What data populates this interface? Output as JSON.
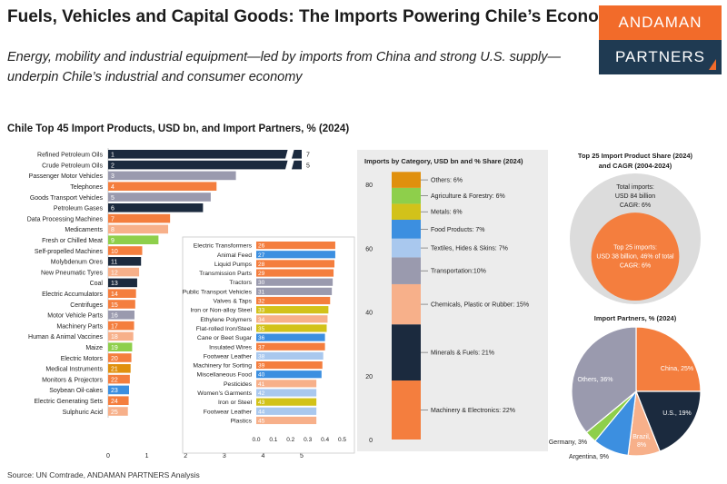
{
  "header": {
    "title": "Fuels, Vehicles and Capital Goods: The Imports Powering Chile’s Economy",
    "subtitle": "Energy, mobility and industrial equipment—led by imports from China and strong U.S. supply—underpin Chile’s industrial and consumer economy",
    "logo_top": "ANDAMAN",
    "logo_bottom": "PARTNERS"
  },
  "footer": {
    "source": "Source: UN Comtrade, ANDAMAN PARTNERS Analysis"
  },
  "colors": {
    "navy": "#1B2A3E",
    "gray": "#9A9AAE",
    "orange": "#F47E3E",
    "peach": "#F7B08A",
    "green": "#8ECF4B",
    "yellow": "#D2C21A",
    "blue": "#3C8FE0",
    "lightblue": "#A9C8EE",
    "amber": "#E0900D",
    "lightgray": "#DCDCDC"
  },
  "chart_data": [
    {
      "type": "bar",
      "title": "Chile Top 45 Import Products, USD bn, and Import Partners, % (2024)",
      "orientation": "horizontal",
      "axis_break": true,
      "xlim": [
        0,
        5
      ],
      "ticks": [
        0,
        1,
        2,
        3,
        4,
        5
      ],
      "items": [
        {
          "rank": "1",
          "label": "Refined Petroleum Oils",
          "value": 7,
          "value_label": "7",
          "color": "navy"
        },
        {
          "rank": "2",
          "label": "Crude Petroleum Oils",
          "value": 5,
          "value_label": "5",
          "color": "navy"
        },
        {
          "rank": "3",
          "label": "Passenger Motor Vehicles",
          "value": 3.3,
          "color": "gray"
        },
        {
          "rank": "4",
          "label": "Telephones",
          "value": 2.8,
          "color": "orange"
        },
        {
          "rank": "5",
          "label": "Goods Transport Vehicles",
          "value": 2.65,
          "color": "gray"
        },
        {
          "rank": "6",
          "label": "Petroleum Gases",
          "value": 2.45,
          "color": "navy"
        },
        {
          "rank": "7",
          "label": "Data Processing Machines",
          "value": 1.6,
          "color": "orange"
        },
        {
          "rank": "8",
          "label": "Medicaments",
          "value": 1.55,
          "color": "peach"
        },
        {
          "rank": "9",
          "label": "Fresh or Chilled Meat",
          "value": 1.3,
          "color": "green"
        },
        {
          "rank": "10",
          "label": "Self-propelled Machines",
          "value": 0.88,
          "color": "orange"
        },
        {
          "rank": "11",
          "label": "Molybdenum Ores",
          "value": 0.85,
          "color": "navy"
        },
        {
          "rank": "12",
          "label": "New Pneumatic Tyres",
          "value": 0.8,
          "color": "peach"
        },
        {
          "rank": "13",
          "label": "Coal",
          "value": 0.75,
          "color": "navy"
        },
        {
          "rank": "14",
          "label": "Electric Accumulators",
          "value": 0.72,
          "color": "orange"
        },
        {
          "rank": "15",
          "label": "Centrifuges",
          "value": 0.7,
          "color": "orange"
        },
        {
          "rank": "16",
          "label": "Motor Vehicle Parts",
          "value": 0.68,
          "color": "gray"
        },
        {
          "rank": "17",
          "label": "Machinery Parts",
          "value": 0.67,
          "color": "orange"
        },
        {
          "rank": "18",
          "label": "Human & Animal Vaccines",
          "value": 0.65,
          "color": "peach"
        },
        {
          "rank": "19",
          "label": "Maize",
          "value": 0.62,
          "color": "green"
        },
        {
          "rank": "20",
          "label": "Electric Motors",
          "value": 0.6,
          "color": "orange"
        },
        {
          "rank": "21",
          "label": "Medical Instruments",
          "value": 0.58,
          "color": "amber"
        },
        {
          "rank": "22",
          "label": "Monitors & Projectors",
          "value": 0.56,
          "color": "orange"
        },
        {
          "rank": "23",
          "label": "Soybean Oil-cakes",
          "value": 0.54,
          "color": "blue"
        },
        {
          "rank": "24",
          "label": "Electric Generating Sets",
          "value": 0.53,
          "color": "orange"
        },
        {
          "rank": "25",
          "label": "Sulphuric Acid",
          "value": 0.51,
          "color": "peach"
        }
      ]
    },
    {
      "type": "bar",
      "orientation": "horizontal",
      "xlim": [
        0,
        0.5
      ],
      "ticks": [
        0,
        0.1,
        0.2,
        0.3,
        0.4,
        0.5
      ],
      "tick_labels": [
        "0.0",
        "0.1",
        "0.2",
        "0.3",
        "0.4",
        "0.5"
      ],
      "items": [
        {
          "rank": "26",
          "label": "Electric Transformers",
          "value": 0.46,
          "color": "orange"
        },
        {
          "rank": "27",
          "label": "Animal Feed",
          "value": 0.46,
          "color": "blue"
        },
        {
          "rank": "28",
          "label": "Liquid Pumps",
          "value": 0.455,
          "color": "orange"
        },
        {
          "rank": "29",
          "label": "Transmission Parts",
          "value": 0.45,
          "color": "orange"
        },
        {
          "rank": "30",
          "label": "Tractors",
          "value": 0.445,
          "color": "gray"
        },
        {
          "rank": "31",
          "label": "Public Transport Vehicles",
          "value": 0.44,
          "color": "gray"
        },
        {
          "rank": "32",
          "label": "Valves & Taps",
          "value": 0.43,
          "color": "orange"
        },
        {
          "rank": "33",
          "label": "Iron or Non-alloy Steel",
          "value": 0.42,
          "color": "yellow"
        },
        {
          "rank": "34",
          "label": "Ethylene Polymers",
          "value": 0.415,
          "color": "peach"
        },
        {
          "rank": "35",
          "label": "Flat-rolled Iron/Steel",
          "value": 0.41,
          "color": "yellow"
        },
        {
          "rank": "36",
          "label": "Cane or Beet Sugar",
          "value": 0.4,
          "color": "blue"
        },
        {
          "rank": "37",
          "label": "Insulated Wires",
          "value": 0.4,
          "color": "orange"
        },
        {
          "rank": "38",
          "label": "Footwear Leather",
          "value": 0.39,
          "color": "lightblue"
        },
        {
          "rank": "39",
          "label": "Machinery for Sorting",
          "value": 0.385,
          "color": "orange"
        },
        {
          "rank": "40",
          "label": "Miscellaneous Food",
          "value": 0.38,
          "color": "blue"
        },
        {
          "rank": "41",
          "label": "Pesticides",
          "value": 0.35,
          "color": "peach"
        },
        {
          "rank": "42",
          "label": "Women's Garments",
          "value": 0.35,
          "color": "lightblue"
        },
        {
          "rank": "43",
          "label": "Iron or Steel",
          "value": 0.35,
          "color": "yellow"
        },
        {
          "rank": "44",
          "label": "Footwear Leather",
          "value": 0.35,
          "color": "lightblue"
        },
        {
          "rank": "45",
          "label": "Plastics",
          "value": 0.35,
          "color": "peach"
        }
      ]
    },
    {
      "type": "bar",
      "stacked": true,
      "title": "Imports by Category, USD bn and % Share (2024)",
      "ylim": [
        0,
        80
      ],
      "yticks": [
        0,
        20,
        40,
        60,
        80
      ],
      "segments": [
        {
          "label": "Machinery & Electronics: 22%",
          "value": 18.5,
          "color": "orange"
        },
        {
          "label": "Minerals & Fuels: 21%",
          "value": 17.6,
          "color": "navy"
        },
        {
          "label": "Chemicals, Plastic or Rubber: 15%",
          "value": 12.6,
          "color": "peach"
        },
        {
          "label": "Transportation:10%",
          "value": 8.4,
          "color": "gray"
        },
        {
          "label": "Textiles, Hides & Skins: 7%",
          "value": 5.9,
          "color": "lightblue"
        },
        {
          "label": "Food Products: 7%",
          "value": 5.9,
          "color": "blue"
        },
        {
          "label": "Metals: 6%",
          "value": 5.0,
          "color": "yellow"
        },
        {
          "label": "Agriculture & Forestry: 6%",
          "value": 5.0,
          "color": "green"
        },
        {
          "label": "Others: 6%",
          "value": 5.0,
          "color": "amber"
        }
      ]
    },
    {
      "type": "bubble",
      "title": "Top 25 Import Product Share (2024) and CAGR (2004-2024)",
      "outer": {
        "label_lines": [
          "Total imports:",
          "USD 84 billion",
          "CAGR: 6%"
        ],
        "value": 84
      },
      "inner": {
        "label_lines": [
          "Top 25 imports:",
          "USD 38 billion, 46% of total",
          "CAGR: 6%"
        ],
        "value": 38
      }
    },
    {
      "type": "pie",
      "title": "Import Partners, % (2024)",
      "slices": [
        {
          "label": "China, 25%",
          "value": 25,
          "color": "orange"
        },
        {
          "label": "U.S., 19%",
          "value": 19,
          "color": "navy"
        },
        {
          "label": "Brazil, 8%",
          "value": 8,
          "color": "peach"
        },
        {
          "label": "Argentina, 9%",
          "value": 9,
          "color": "blue"
        },
        {
          "label": "Germany, 3%",
          "value": 3,
          "color": "green"
        },
        {
          "label": "Others, 36%",
          "value": 36,
          "color": "gray"
        }
      ]
    }
  ]
}
